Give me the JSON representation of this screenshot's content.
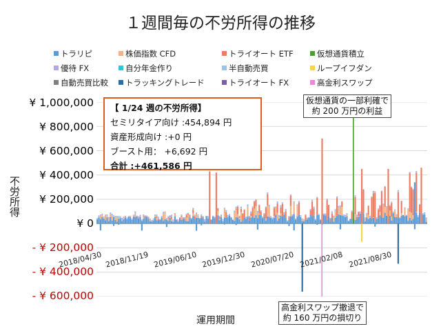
{
  "title": "１週間毎の不労所得の推移",
  "legend": [
    {
      "label": "トラリピ",
      "color": "#5b9bd5"
    },
    {
      "label": "株価指数 CFD",
      "color": "#f4b183"
    },
    {
      "label": "トライオート ETF",
      "color": "#ed7d62"
    },
    {
      "label": "仮想通貨積立",
      "color": "#4aa02c"
    },
    {
      "label": "優待 FX",
      "color": "#b4a7e5"
    },
    {
      "label": "自分年金作り",
      "color": "#33c3d9"
    },
    {
      "label": "半自動売買",
      "color": "#9dc3e6"
    },
    {
      "label": "ループイフダン",
      "color": "#f5d547"
    },
    {
      "label": "自動売買比較",
      "color": "#7f7f7f"
    },
    {
      "label": "トラッキングトレード",
      "color": "#2e6da4"
    },
    {
      "label": "トライオート FX",
      "color": "#7a5ca8"
    },
    {
      "label": "高金利スワップ",
      "color": "#e68ad9"
    }
  ],
  "info": {
    "header": "【 1/24 週の不労所得】",
    "line1": "セミリタイア向け :454,894 円",
    "line2": "資産形成向け :+0 円",
    "line3": "ブースト用： +6,692 円",
    "total": "合計 :+461,586 円"
  },
  "callout_top": {
    "line1": "仮想通貨の一部利確で",
    "line2": "約 200 万円の利益"
  },
  "callout_bottom": {
    "line1": "高金利スワップ撤退で",
    "line2": "約 160 万円の損切り"
  },
  "chart_data": {
    "type": "bar",
    "stacked": true,
    "title": "１週間毎の不労所得の推移",
    "xlabel": "運用期間",
    "ylabel": "不労所得",
    "ylim": [
      -600000,
      1000000
    ],
    "ytick_labels": [
      "¥ 1,000,000",
      "¥ 800,000",
      "¥ 600,000",
      "¥ 400,000",
      "¥ 200,000",
      "¥ 0",
      "- ¥ 200,000",
      "- ¥ 400,000",
      "- ¥ 600,000"
    ],
    "yticks": [
      1000000,
      800000,
      600000,
      400000,
      200000,
      0,
      -200000,
      -400000,
      -600000
    ],
    "xtick_labels": [
      "2018/04/30",
      "2018/11/19",
      "2019/06/10",
      "2019/12/30",
      "2020/07/20",
      "2021/02/08",
      "2021/08/30"
    ],
    "grid": true,
    "legend_position": "top",
    "annotations": [
      {
        "date": "2021/04",
        "value": 2000000,
        "series": "仮想通貨積立"
      },
      {
        "date": "2021/02",
        "value": -1600000,
        "series": "高金利スワップ"
      }
    ],
    "series_approx": [
      {
        "name": "トラリピ",
        "typical_weekly": [
          10000,
          60000
        ]
      },
      {
        "name": "株価指数 CFD",
        "typical_weekly": [
          0,
          180000
        ]
      },
      {
        "name": "トライオート ETF",
        "typical_weekly": [
          0,
          450000
        ]
      }
    ]
  }
}
